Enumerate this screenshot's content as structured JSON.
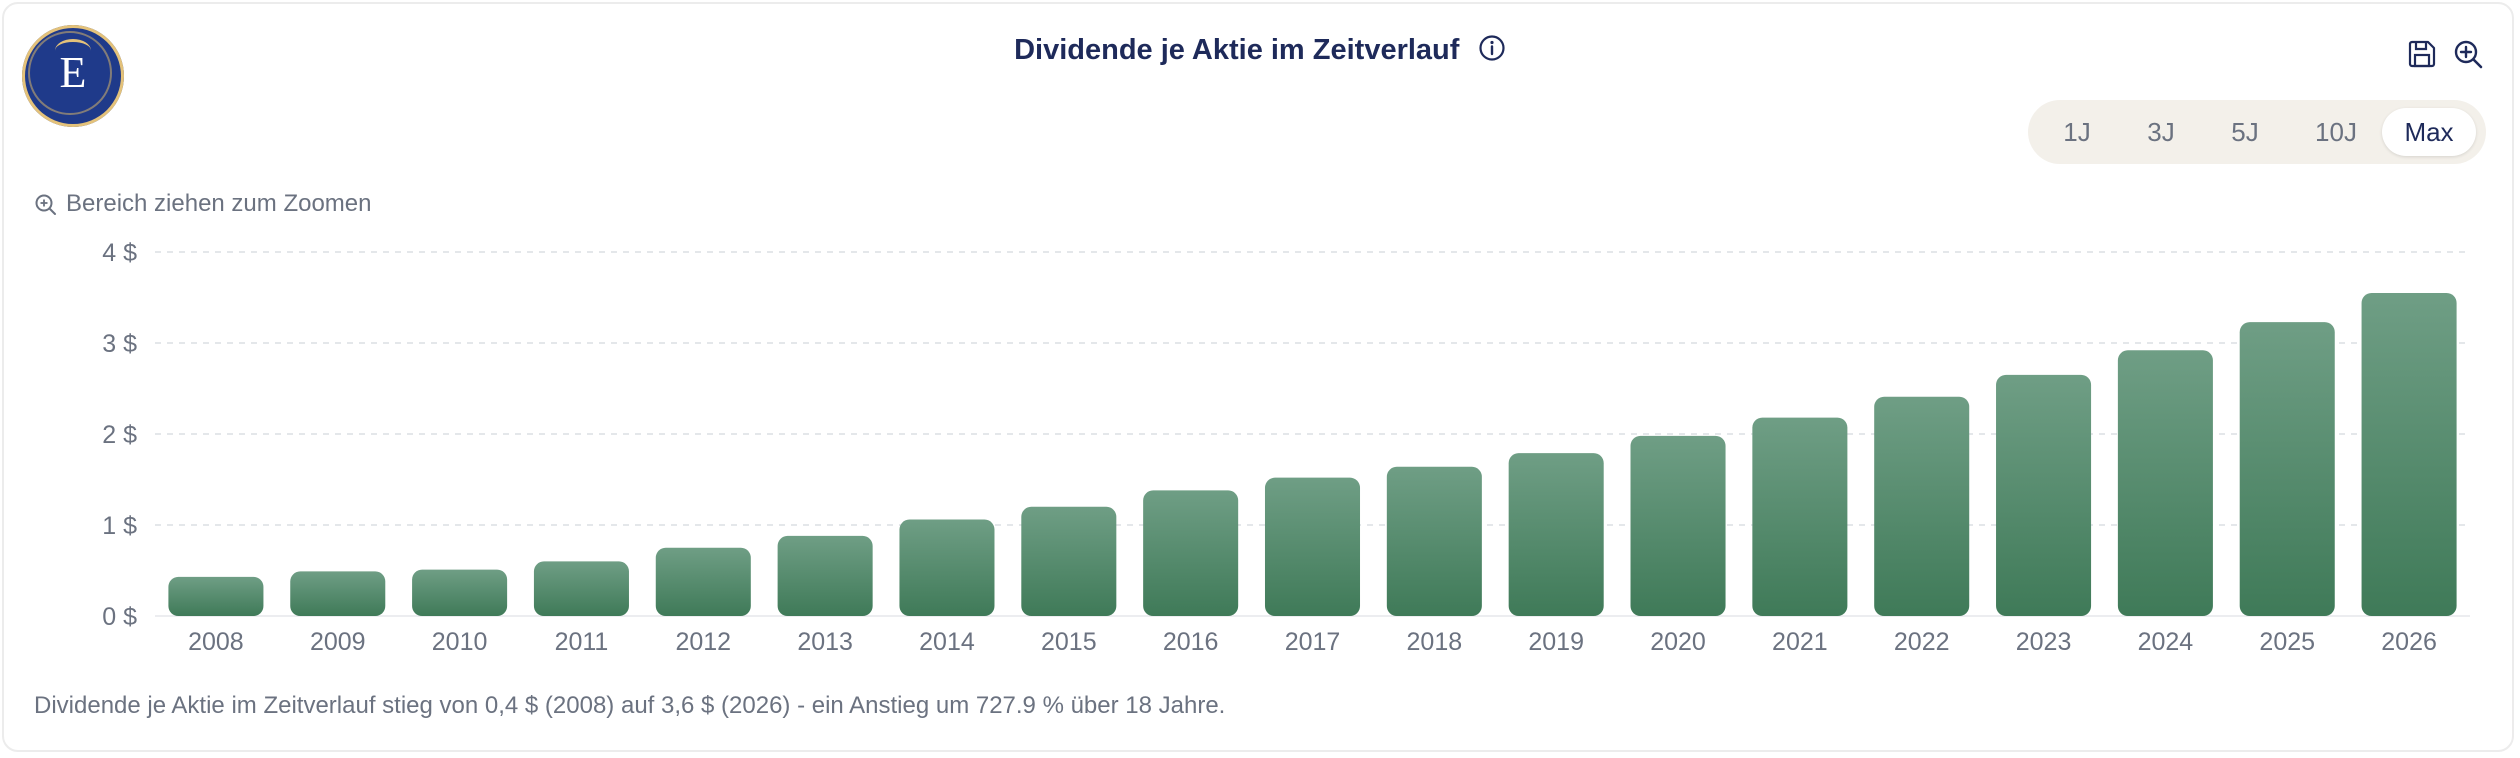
{
  "header": {
    "title": "Dividende je Aktie im Zeitverlauf",
    "logo_letter": "E",
    "info_icon": "info-icon",
    "save_icon": "save-icon",
    "zoom_icon": "zoom-in-icon"
  },
  "range_selector": {
    "options": [
      "1J",
      "3J",
      "5J",
      "10J",
      "Max"
    ],
    "selected": "Max"
  },
  "zoom_hint": "Bereich ziehen zum Zoomen",
  "summary": "Dividende je Aktie im Zeitverlauf stieg von 0,4 $ (2008) auf 3,6 $ (2026) - ein Anstieg um 727.9 % über 18 Jahre.",
  "colors": {
    "bar_top": "#6f9e85",
    "bar_bottom": "#3f7a58",
    "title": "#1e2a5a",
    "logo_bg": "#1f3a8a",
    "logo_gold": "#e4c27a"
  },
  "chart_data": {
    "type": "bar",
    "categories": [
      "2008",
      "2009",
      "2010",
      "2011",
      "2012",
      "2013",
      "2014",
      "2015",
      "2016",
      "2017",
      "2018",
      "2019",
      "2020",
      "2021",
      "2022",
      "2023",
      "2024",
      "2025",
      "2026"
    ],
    "values": [
      0.43,
      0.49,
      0.51,
      0.6,
      0.75,
      0.88,
      1.06,
      1.2,
      1.38,
      1.52,
      1.64,
      1.79,
      1.98,
      2.18,
      2.41,
      2.65,
      2.92,
      3.23,
      3.55
    ],
    "yticks": [
      0,
      1,
      2,
      3,
      4
    ],
    "ytick_labels": [
      "0 $",
      "1 $",
      "2 $",
      "3 $",
      "4 $"
    ],
    "ylim": [
      0,
      4
    ],
    "grid": true,
    "title": "Dividende je Aktie im Zeitverlauf"
  }
}
